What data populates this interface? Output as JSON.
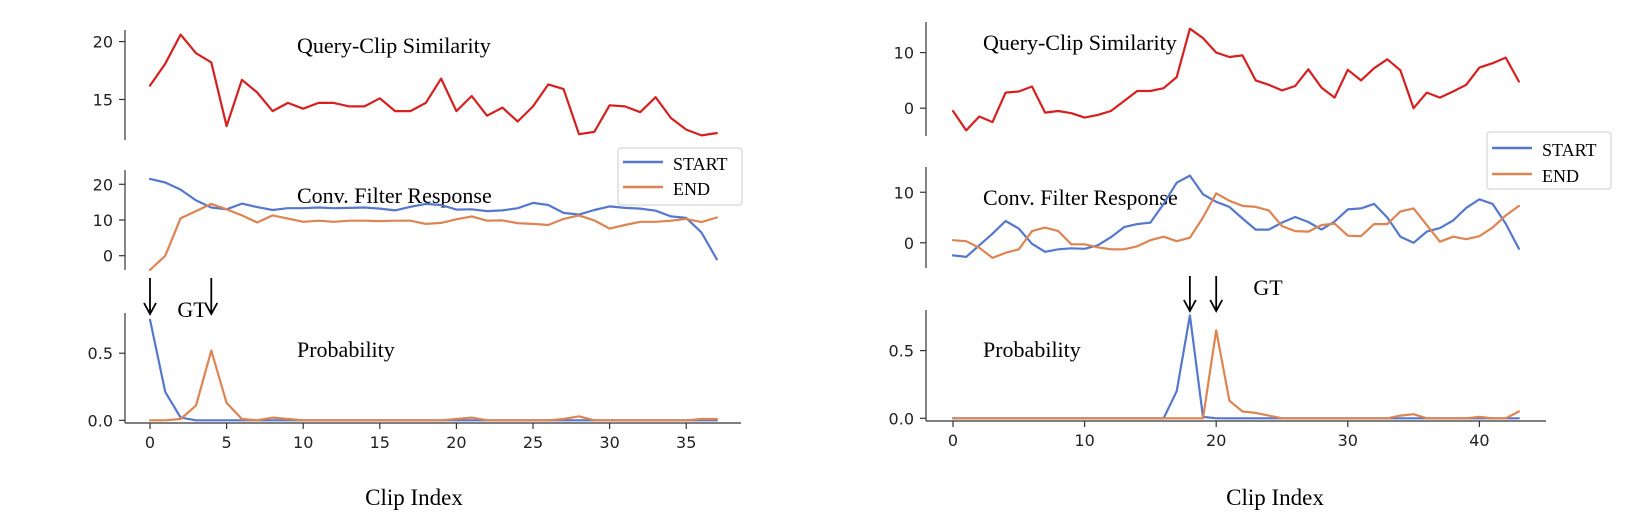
{
  "chart_data": [
    {
      "type": "line",
      "xlabel": "Clip Index",
      "xlim": [
        -1.5,
        38
      ],
      "xticks": [
        0,
        5,
        10,
        15,
        20,
        25,
        30,
        35
      ],
      "legend": {
        "placement": "right",
        "entries": [
          "START",
          "END"
        ]
      },
      "gt_label": "GT",
      "gt_marks": [
        0,
        4
      ],
      "panels": [
        {
          "title": "Query-Clip Similarity",
          "ylim": [
            11.5,
            21
          ],
          "yticks": [
            15,
            20
          ],
          "series": [
            {
              "color": "#d62020",
              "values": [
                16.2,
                18.1,
                20.6,
                19.0,
                18.2,
                12.7,
                16.7,
                15.6,
                14.0,
                14.7,
                14.2,
                14.7,
                14.7,
                14.4,
                14.4,
                15.1,
                14.0,
                14.0,
                14.7,
                16.8,
                14.0,
                15.3,
                13.6,
                14.3,
                13.1,
                14.4,
                16.3,
                15.9,
                12.0,
                12.2,
                14.5,
                14.4,
                13.9,
                15.2,
                13.4,
                12.4,
                11.9,
                12.1
              ]
            }
          ]
        },
        {
          "title": "Conv. Filter Response",
          "ylim": [
            -4,
            24
          ],
          "yticks": [
            0,
            10,
            20
          ],
          "series": [
            {
              "name": "START",
              "color": "#5577cc",
              "values": [
                21.5,
                20.5,
                18.5,
                15.5,
                13.5,
                13.0,
                14.6,
                13.6,
                12.8,
                13.3,
                13.3,
                13.5,
                13.3,
                13.4,
                13.5,
                13.2,
                12.7,
                13.7,
                14.5,
                14.2,
                12.9,
                13.0,
                12.5,
                12.7,
                13.3,
                14.8,
                14.2,
                12.0,
                11.5,
                12.8,
                13.8,
                13.4,
                13.2,
                12.6,
                11.0,
                10.6,
                6.5,
                -1.0
              ]
            },
            {
              "name": "END",
              "color": "#dd8452",
              "values": [
                -4.0,
                0.0,
                10.5,
                12.5,
                14.5,
                13.0,
                11.3,
                9.3,
                11.3,
                10.4,
                9.5,
                9.8,
                9.5,
                9.8,
                9.8,
                9.7,
                9.8,
                9.8,
                8.9,
                9.2,
                10.2,
                11.0,
                9.8,
                9.9,
                9.1,
                8.9,
                8.6,
                10.3,
                11.3,
                9.9,
                7.6,
                8.6,
                9.5,
                9.5,
                9.8,
                10.3,
                9.4,
                10.7
              ]
            }
          ]
        },
        {
          "title": "Probability",
          "ylim": [
            -0.02,
            0.8
          ],
          "yticks": [
            0.0,
            0.5
          ],
          "ytick_labels": [
            "0.0",
            "0.5"
          ],
          "series": [
            {
              "name": "START",
              "color": "#5577cc",
              "values": [
                0.75,
                0.21,
                0.02,
                0,
                0,
                0,
                0,
                0,
                0,
                0,
                0,
                0,
                0,
                0,
                0,
                0,
                0,
                0,
                0,
                0,
                0,
                0,
                0,
                0,
                0,
                0,
                0,
                0,
                0,
                0,
                0,
                0,
                0,
                0,
                0,
                0,
                0,
                0
              ]
            },
            {
              "name": "END",
              "color": "#dd8452",
              "values": [
                0,
                0,
                0.01,
                0.11,
                0.52,
                0.13,
                0.01,
                0,
                0.02,
                0.01,
                0,
                0,
                0,
                0,
                0,
                0,
                0,
                0,
                0,
                0,
                0.01,
                0.02,
                0,
                0,
                0,
                0,
                0,
                0.01,
                0.03,
                0,
                0,
                0,
                0,
                0,
                0,
                0,
                0.01,
                0.01
              ]
            }
          ]
        }
      ]
    },
    {
      "type": "line",
      "xlabel": "Clip Index",
      "xlim": [
        -1.5,
        44
      ],
      "xticks": [
        0,
        10,
        20,
        30,
        40
      ],
      "legend": {
        "placement": "right",
        "entries": [
          "START",
          "END"
        ]
      },
      "gt_label": "GT",
      "gt_marks": [
        18,
        20
      ],
      "panels": [
        {
          "title": "Query-Clip Similarity",
          "ylim": [
            -5,
            15.5
          ],
          "yticks": [
            0,
            10
          ],
          "series": [
            {
              "color": "#d62020",
              "values": [
                -0.5,
                -4.0,
                -1.5,
                -2.5,
                2.8,
                3.0,
                3.9,
                -0.8,
                -0.5,
                -0.9,
                -1.7,
                -1.2,
                -0.5,
                1.3,
                3.1,
                3.1,
                3.6,
                5.6,
                14.3,
                12.6,
                10.0,
                9.2,
                9.5,
                5.0,
                4.2,
                3.2,
                4.0,
                7.0,
                3.7,
                1.9,
                6.9,
                5.0,
                7.2,
                8.8,
                6.8,
                0.0,
                2.8,
                1.9,
                3.0,
                4.2,
                7.3,
                8.1,
                9.1,
                4.8
              ]
            }
          ]
        },
        {
          "title": "Conv. Filter Response",
          "ylim": [
            -5,
            15
          ],
          "yticks": [
            0,
            10
          ],
          "series": [
            {
              "name": "START",
              "color": "#5577cc",
              "values": [
                -2.5,
                -2.8,
                -0.5,
                1.8,
                4.3,
                2.8,
                -0.2,
                -1.8,
                -1.3,
                -1.1,
                -1.2,
                -0.5,
                1.1,
                3.1,
                3.7,
                4.0,
                7.7,
                11.9,
                13.3,
                9.6,
                8.1,
                7.1,
                4.8,
                2.6,
                2.6,
                4.0,
                5.1,
                4.1,
                2.6,
                4.2,
                6.6,
                6.8,
                7.7,
                5.0,
                1.2,
                0.0,
                2.2,
                2.9,
                4.4,
                6.9,
                8.6,
                7.7,
                3.8,
                -1.2
              ]
            },
            {
              "name": "END",
              "color": "#dd8452",
              "values": [
                0.5,
                0.3,
                -1.0,
                -3.0,
                -2.0,
                -1.3,
                2.3,
                3.0,
                2.3,
                -0.3,
                -0.3,
                -0.9,
                -1.3,
                -1.3,
                -0.7,
                0.5,
                1.2,
                0.3,
                1.0,
                5.0,
                9.8,
                8.3,
                7.3,
                7.1,
                6.4,
                3.3,
                2.3,
                2.2,
                3.5,
                3.8,
                1.4,
                1.3,
                3.7,
                3.7,
                6.2,
                6.8,
                3.5,
                0.2,
                1.2,
                0.7,
                1.3,
                3.0,
                5.4,
                7.3
              ]
            }
          ]
        },
        {
          "title": "Probability",
          "ylim": [
            -0.02,
            0.8
          ],
          "yticks": [
            0.0,
            0.5
          ],
          "ytick_labels": [
            "0.0",
            "0.5"
          ],
          "series": [
            {
              "name": "START",
              "color": "#5577cc",
              "values": [
                0,
                0,
                0,
                0,
                0,
                0,
                0,
                0,
                0,
                0,
                0,
                0,
                0,
                0,
                0,
                0,
                0,
                0.2,
                0.76,
                0.01,
                0,
                0,
                0,
                0,
                0,
                0,
                0,
                0,
                0,
                0,
                0,
                0,
                0,
                0,
                0,
                0,
                0,
                0,
                0,
                0,
                0,
                0,
                0,
                0
              ]
            },
            {
              "name": "END",
              "color": "#dd8452",
              "values": [
                0,
                0,
                0,
                0,
                0,
                0,
                0,
                0,
                0,
                0,
                0,
                0,
                0,
                0,
                0,
                0,
                0,
                0,
                0,
                0,
                0.65,
                0.13,
                0.05,
                0.04,
                0.02,
                0,
                0,
                0,
                0,
                0,
                0,
                0,
                0,
                0,
                0.02,
                0.03,
                0,
                0,
                0,
                0,
                0.01,
                0,
                0,
                0.05
              ]
            }
          ]
        }
      ]
    }
  ]
}
